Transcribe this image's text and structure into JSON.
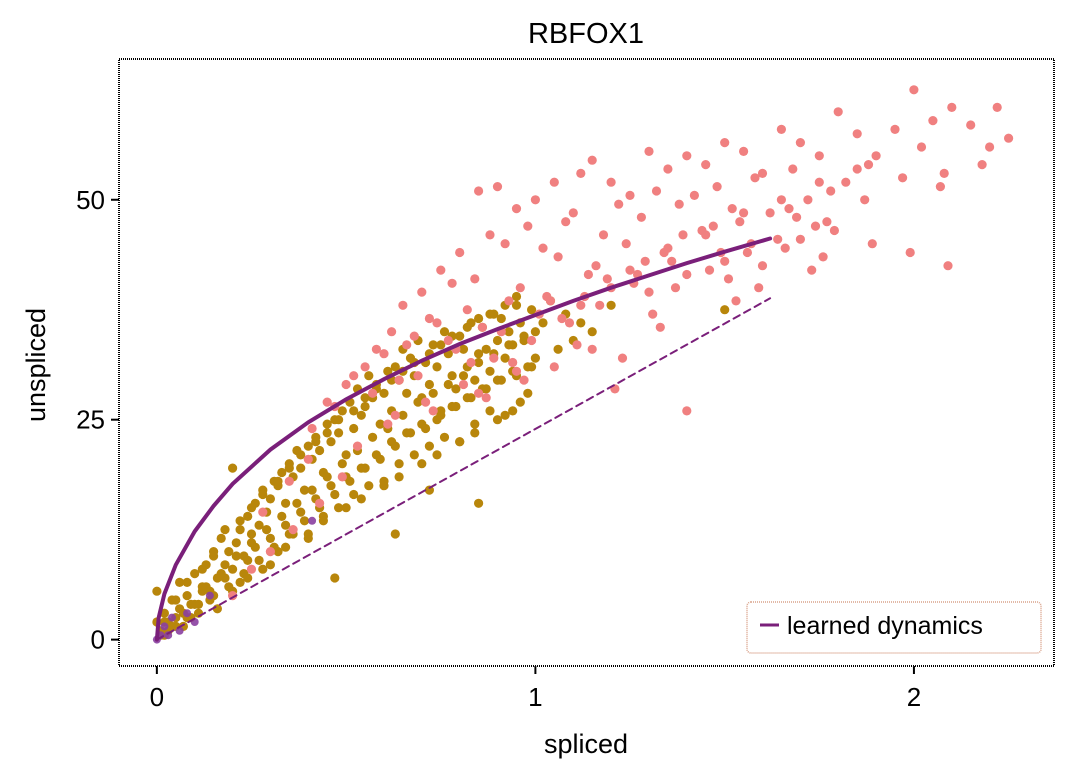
{
  "chart_data": {
    "type": "scatter",
    "title": "RBFOX1",
    "xlabel": "spliced",
    "ylabel": "unspliced",
    "xlim": [
      -0.1,
      2.37
    ],
    "ylim": [
      -3,
      66
    ],
    "xticks": [
      0,
      1,
      2
    ],
    "xtick_labels": [
      "0",
      "1",
      "2"
    ],
    "yticks": [
      0,
      25,
      50
    ],
    "ytick_labels": [
      "0",
      "25",
      "50"
    ],
    "grid": false,
    "legend": {
      "position": "lower-right",
      "entries": [
        "learned dynamics"
      ]
    },
    "colors": {
      "induction": "#f08080",
      "repression": "#b8860b",
      "steady": "#8a3fa0",
      "learned_curve": "#7a1f7a",
      "steady_state_line": "#7a1f7a",
      "legend_border": "#d9a28a"
    },
    "series": [
      {
        "name": "pink cells",
        "kind": "scatter",
        "color": "#f08080",
        "x": [
          0.78,
          0.85,
          0.9,
          0.95,
          1.0,
          1.05,
          1.08,
          1.12,
          1.15,
          1.2,
          1.25,
          1.3,
          1.35,
          1.4,
          1.45,
          1.5,
          1.55,
          1.6,
          1.65,
          1.7,
          1.75,
          1.8,
          1.85,
          1.9,
          1.95,
          2.0,
          2.05,
          2.1,
          2.15,
          2.2,
          2.25,
          0.65,
          0.7,
          0.75,
          0.8,
          0.88,
          0.92,
          0.98,
          1.02,
          1.1,
          1.18,
          1.22,
          1.28,
          1.32,
          1.38,
          1.42,
          1.48,
          1.52,
          1.58,
          1.62,
          1.68,
          1.72,
          1.78,
          1.82,
          1.88,
          2.02,
          2.08,
          2.18,
          0.62,
          0.72,
          0.84,
          0.96,
          1.06,
          1.14,
          1.24,
          1.34,
          1.44,
          1.54,
          1.64,
          1.74,
          0.58,
          0.68,
          0.82,
          0.93,
          1.03,
          1.16,
          1.26,
          1.36,
          1.46,
          1.56,
          1.66,
          1.76,
          0.5,
          0.55,
          0.6,
          0.66,
          0.74,
          0.86,
          0.99,
          1.12,
          1.2,
          1.3,
          1.4,
          1.5,
          1.6,
          1.7,
          0.45,
          0.52,
          0.64,
          0.77,
          0.89,
          1.01,
          1.09,
          1.19,
          1.29,
          1.39,
          1.49,
          1.59,
          1.69,
          1.79,
          1.89,
          1.99,
          2.09,
          0.63,
          0.87,
          1.21,
          1.4,
          1.23,
          0.83,
          0.95,
          1.07,
          1.17,
          1.27,
          1.37,
          1.47,
          1.57,
          1.67,
          1.77,
          1.87,
          1.97,
          2.07,
          2.22,
          0.41,
          0.47,
          0.57,
          0.69,
          0.79,
          0.91,
          1.04,
          1.13,
          1.25,
          1.35,
          1.45,
          1.55,
          1.65,
          1.75,
          1.85,
          0.71,
          0.81,
          0.94,
          1.11,
          1.31,
          1.51,
          0.28,
          0.35,
          0.4,
          0.53,
          0.61,
          0.73,
          0.85,
          0.97,
          1.05,
          1.15,
          1.33,
          1.53,
          1.73,
          0.2,
          0.25,
          0.3,
          0.36,
          0.43,
          0.49
        ],
        "y": [
          40.5,
          51.0,
          51.5,
          49.0,
          50.0,
          52.0,
          47.5,
          53.0,
          54.5,
          52.0,
          50.5,
          55.5,
          53.5,
          55.0,
          54.0,
          56.5,
          55.5,
          53.0,
          58.0,
          56.5,
          55.0,
          60.0,
          57.5,
          55.0,
          58.0,
          62.5,
          59.0,
          60.5,
          58.5,
          56.0,
          57.0,
          38.0,
          39.5,
          42.0,
          44.0,
          46.0,
          45.0,
          47.0,
          44.5,
          48.5,
          46.0,
          49.5,
          48.0,
          51.0,
          49.5,
          50.5,
          51.5,
          49.0,
          52.5,
          48.5,
          53.5,
          50.0,
          51.0,
          52.0,
          54.0,
          56.0,
          53.0,
          54.0,
          35.0,
          36.5,
          41.0,
          40.0,
          43.5,
          41.5,
          45.0,
          44.0,
          46.5,
          47.5,
          45.5,
          47.0,
          33.0,
          34.5,
          37.5,
          38.5,
          39.0,
          42.5,
          40.5,
          43.0,
          42.0,
          44.0,
          44.5,
          43.5,
          29.0,
          31.0,
          32.5,
          33.5,
          36.0,
          35.5,
          34.0,
          38.0,
          40.0,
          39.5,
          41.5,
          43.0,
          42.5,
          45.5,
          27.0,
          30.0,
          29.5,
          34.0,
          32.0,
          37.0,
          36.0,
          41.0,
          43.0,
          46.0,
          44.0,
          40.0,
          48.0,
          46.5,
          45.0,
          44.0,
          42.5,
          25.5,
          27.5,
          28.5,
          26.0,
          32.0,
          31.5,
          30.5,
          36.5,
          38.0,
          41.5,
          40.0,
          47.0,
          45.0,
          49.0,
          47.5,
          50.0,
          52.5,
          51.5,
          60.5,
          24.0,
          26.5,
          28.0,
          30.0,
          33.0,
          35.0,
          38.5,
          39.0,
          42.0,
          44.5,
          46.0,
          48.5,
          50.0,
          52.0,
          53.5,
          27.0,
          29.0,
          31.5,
          33.5,
          37.0,
          41.0,
          14.5,
          18.0,
          20.5,
          22.0,
          24.5,
          26.0,
          28.0,
          29.5,
          31.0,
          33.0,
          35.5,
          38.5,
          42.0,
          5.0,
          8.0,
          10.0,
          12.5,
          15.5,
          18.5
        ]
      },
      {
        "name": "gold cells",
        "kind": "scatter",
        "color": "#b8860b",
        "x": [
          0.0,
          0.01,
          0.02,
          0.03,
          0.04,
          0.05,
          0.06,
          0.07,
          0.08,
          0.09,
          0.1,
          0.11,
          0.12,
          0.13,
          0.14,
          0.15,
          0.16,
          0.17,
          0.18,
          0.19,
          0.2,
          0.21,
          0.22,
          0.23,
          0.24,
          0.25,
          0.26,
          0.27,
          0.28,
          0.29,
          0.3,
          0.31,
          0.32,
          0.33,
          0.34,
          0.35,
          0.36,
          0.37,
          0.38,
          0.39,
          0.4,
          0.41,
          0.42,
          0.43,
          0.44,
          0.45,
          0.46,
          0.47,
          0.48,
          0.49,
          0.5,
          0.51,
          0.52,
          0.53,
          0.54,
          0.55,
          0.56,
          0.57,
          0.58,
          0.59,
          0.6,
          0.61,
          0.62,
          0.63,
          0.64,
          0.65,
          0.66,
          0.67,
          0.68,
          0.69,
          0.7,
          0.71,
          0.72,
          0.73,
          0.74,
          0.75,
          0.76,
          0.77,
          0.78,
          0.79,
          0.8,
          0.81,
          0.82,
          0.83,
          0.84,
          0.85,
          0.86,
          0.87,
          0.88,
          0.89,
          0.9,
          0.91,
          0.92,
          0.93,
          0.94,
          0.95,
          0.96,
          0.97,
          0.98,
          0.99,
          1.0,
          1.02,
          1.04,
          1.06,
          1.08,
          1.1,
          1.12,
          1.15,
          1.2,
          1.5,
          0.0,
          0.02,
          0.04,
          0.06,
          0.08,
          0.1,
          0.12,
          0.14,
          0.16,
          0.18,
          0.2,
          0.22,
          0.24,
          0.26,
          0.28,
          0.3,
          0.32,
          0.34,
          0.36,
          0.38,
          0.4,
          0.42,
          0.44,
          0.46,
          0.48,
          0.5,
          0.52,
          0.54,
          0.56,
          0.58,
          0.6,
          0.62,
          0.64,
          0.66,
          0.68,
          0.7,
          0.72,
          0.74,
          0.76,
          0.78,
          0.8,
          0.82,
          0.84,
          0.86,
          0.88,
          0.9,
          0.92,
          0.94,
          0.96,
          0.98,
          1.0,
          0.01,
          0.03,
          0.05,
          0.07,
          0.09,
          0.11,
          0.13,
          0.15,
          0.17,
          0.19,
          0.21,
          0.23,
          0.25,
          0.27,
          0.29,
          0.31,
          0.33,
          0.35,
          0.37,
          0.39,
          0.41,
          0.43,
          0.45,
          0.47,
          0.49,
          0.51,
          0.53,
          0.55,
          0.57,
          0.59,
          0.61,
          0.63,
          0.65,
          0.67,
          0.69,
          0.71,
          0.73,
          0.75,
          0.77,
          0.79,
          0.81,
          0.83,
          0.85,
          0.87,
          0.89,
          0.91,
          0.93,
          0.95,
          0.97,
          0.99,
          0.02,
          0.05,
          0.08,
          0.12,
          0.15,
          0.18,
          0.22,
          0.25,
          0.28,
          0.32,
          0.35,
          0.38,
          0.42,
          0.45,
          0.48,
          0.52,
          0.55,
          0.58,
          0.62,
          0.65,
          0.68,
          0.72,
          0.75,
          0.78,
          0.82,
          0.85,
          0.88,
          0.92,
          0.95,
          0.2,
          0.24,
          0.3,
          0.34,
          0.4,
          0.44,
          0.5,
          0.54,
          0.6,
          0.64,
          0.7,
          0.74,
          0.8,
          0.84,
          0.9,
          0.94,
          0.85,
          0.63,
          0.47,
          0.72
        ],
        "y": [
          5.5,
          1.0,
          3.0,
          2.0,
          4.5,
          1.5,
          6.5,
          3.0,
          5.0,
          2.5,
          7.5,
          4.0,
          6.0,
          8.5,
          5.5,
          9.5,
          7.0,
          11.5,
          8.5,
          10.0,
          19.5,
          11.0,
          12.5,
          9.5,
          14.0,
          12.0,
          15.5,
          13.0,
          17.0,
          14.5,
          16.0,
          18.0,
          17.5,
          19.0,
          15.5,
          20.0,
          18.5,
          21.5,
          19.5,
          17.0,
          22.0,
          20.5,
          23.0,
          21.5,
          19.0,
          24.5,
          22.5,
          25.0,
          23.5,
          26.0,
          21.0,
          27.0,
          24.0,
          28.5,
          25.5,
          26.5,
          30.0,
          27.5,
          29.0,
          24.5,
          28.0,
          30.5,
          26.0,
          31.0,
          29.5,
          33.0,
          28.0,
          32.0,
          30.0,
          34.0,
          27.5,
          31.5,
          29.0,
          33.5,
          31.0,
          26.0,
          35.0,
          32.5,
          30.0,
          28.5,
          34.5,
          33.0,
          31.0,
          36.0,
          29.5,
          32.5,
          35.5,
          33.0,
          30.5,
          37.0,
          34.0,
          36.5,
          32.0,
          35.0,
          33.5,
          38.0,
          36.0,
          34.5,
          31.0,
          37.5,
          35.0,
          36.0,
          38.5,
          33.0,
          37.0,
          34.0,
          36.0,
          35.0,
          38.0,
          37.5,
          2.0,
          0.5,
          1.5,
          3.5,
          2.5,
          4.0,
          5.5,
          4.5,
          3.5,
          7.0,
          8.0,
          6.5,
          9.0,
          10.5,
          8.0,
          11.5,
          10.0,
          13.0,
          12.0,
          14.5,
          11.5,
          16.0,
          14.0,
          17.5,
          15.0,
          18.5,
          16.5,
          19.5,
          17.5,
          21.0,
          18.0,
          22.5,
          20.0,
          23.5,
          21.0,
          24.5,
          22.0,
          25.0,
          23.0,
          26.5,
          22.5,
          27.5,
          24.5,
          28.5,
          26.0,
          29.5,
          25.5,
          30.5,
          27.0,
          28.0,
          32.0,
          0.5,
          1.0,
          2.5,
          1.5,
          4.0,
          3.0,
          6.0,
          5.0,
          7.5,
          6.0,
          9.5,
          7.5,
          11.0,
          9.0,
          12.5,
          10.5,
          14.0,
          12.0,
          15.5,
          13.5,
          17.0,
          15.0,
          18.5,
          16.5,
          20.0,
          18.0,
          21.5,
          19.5,
          23.0,
          20.5,
          24.0,
          22.0,
          25.5,
          23.5,
          27.0,
          24.0,
          28.0,
          25.5,
          29.0,
          26.5,
          30.0,
          27.5,
          31.5,
          28.5,
          32.5,
          29.5,
          33.5,
          30.0,
          34.0,
          31.0,
          2.0,
          4.5,
          6.5,
          8.0,
          10.0,
          12.5,
          13.5,
          15.0,
          16.5,
          18.0,
          19.5,
          21.0,
          22.5,
          23.5,
          25.0,
          26.0,
          27.5,
          28.5,
          29.5,
          30.5,
          31.5,
          32.5,
          33.5,
          34.5,
          35.5,
          36.5,
          37.0,
          38.0,
          39.0,
          5.5,
          7.0,
          8.5,
          10.5,
          12.0,
          13.5,
          15.0,
          16.0,
          17.5,
          18.5,
          20.0,
          21.0,
          22.5,
          23.5,
          25.0,
          26.0,
          15.5,
          12.0,
          7.0,
          17.0
        ]
      },
      {
        "name": "steady cells",
        "kind": "scatter",
        "color": "#8a3fa0",
        "x": [
          0.0,
          0.01,
          0.02,
          0.03,
          0.04,
          0.06,
          0.08,
          0.1,
          0.14,
          0.41
        ],
        "y": [
          0.0,
          0.5,
          1.5,
          0.5,
          2.5,
          1.0,
          3.0,
          2.0,
          5.0,
          13.5
        ]
      },
      {
        "name": "learned dynamics",
        "kind": "line",
        "color": "#7a1f7a",
        "x": [
          0.0,
          0.005,
          0.02,
          0.05,
          0.1,
          0.15,
          0.2,
          0.3,
          0.4,
          0.5,
          0.6,
          0.7,
          0.8,
          0.9,
          1.0,
          1.1,
          1.2,
          1.3,
          1.4,
          1.5,
          1.62
        ],
        "y": [
          0.0,
          2.5,
          5.2,
          8.5,
          12.3,
          15.2,
          17.7,
          21.6,
          24.7,
          27.3,
          29.6,
          31.7,
          33.6,
          35.3,
          36.9,
          38.5,
          40.0,
          41.4,
          42.8,
          44.1,
          45.6
        ]
      },
      {
        "name": "steady-state line",
        "kind": "dashed-line",
        "color": "#7a1f7a",
        "x": [
          0.0,
          1.62
        ],
        "y": [
          0.0,
          38.8
        ]
      }
    ]
  }
}
